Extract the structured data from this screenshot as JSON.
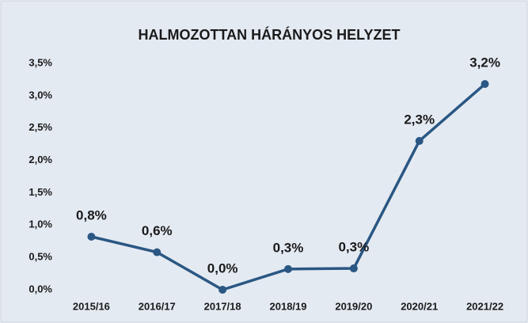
{
  "chart_data": {
    "type": "line",
    "title": "HALMOZOTTAN HÁRÁNYOS HELYZET",
    "categories": [
      "2015/16",
      "2016/17",
      "2017/18",
      "2018/19",
      "2019/20",
      "2020/21",
      "2021/22"
    ],
    "series": [
      {
        "name": "HALMOZOTTAN HÁRÁNYOS HELYZET",
        "color": "#2a5783",
        "values": [
          0.82,
          0.58,
          0.0,
          0.32,
          0.33,
          2.3,
          3.18
        ],
        "value_labels": [
          "0,8%",
          "0,6%",
          "0,0%",
          "0,3%",
          "0,3%",
          "2,3%",
          "3,2%"
        ]
      }
    ],
    "ylim": [
      0,
      3.5
    ],
    "yticks": [
      {
        "value": 0,
        "label": "0,0%"
      },
      {
        "value": 0.5,
        "label": "0,5%"
      },
      {
        "value": 1,
        "label": "1,0%"
      },
      {
        "value": 1.5,
        "label": "1,5%"
      },
      {
        "value": 2,
        "label": "2,0%"
      },
      {
        "value": 2.5,
        "label": "2,5%"
      },
      {
        "value": 3,
        "label": "3,0%"
      },
      {
        "value": 3.5,
        "label": "3,5%"
      }
    ],
    "grid": false
  }
}
